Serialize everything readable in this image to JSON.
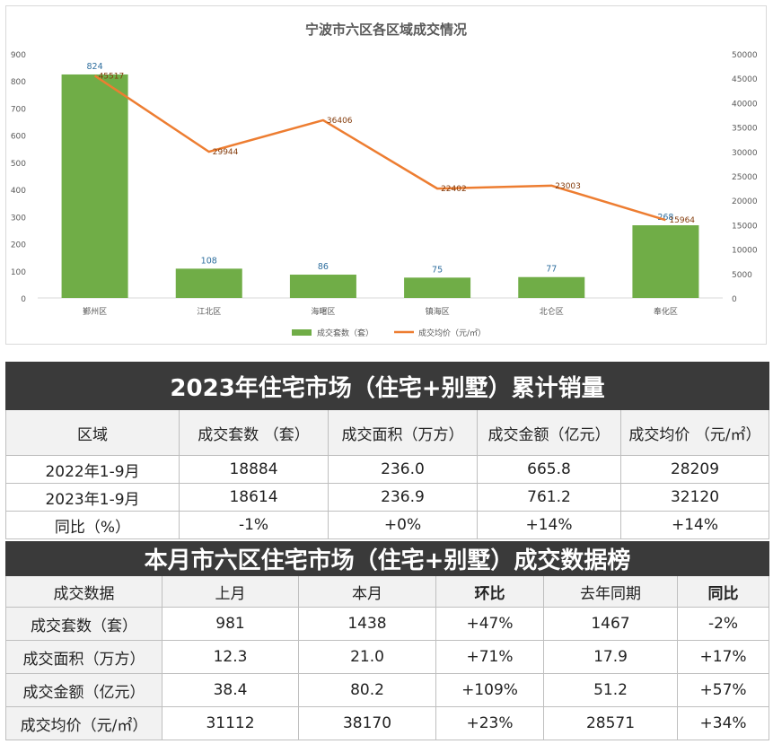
{
  "chart_data": {
    "type": "bar+line",
    "title": "宁波市六区各区域成交情况",
    "categories": [
      "鄞州区",
      "江北区",
      "海曙区",
      "镇海区",
      "北仑区",
      "奉化区"
    ],
    "series": [
      {
        "name": "成交套数（套）",
        "kind": "bar",
        "axis": "left",
        "color": "#70ad47",
        "values": [
          824,
          108,
          86,
          75,
          77,
          268
        ]
      },
      {
        "name": "成交均价（元/㎡）",
        "kind": "line",
        "axis": "right",
        "color": "#ed7d31",
        "values": [
          45517,
          29944,
          36406,
          22402,
          23003,
          15964
        ]
      }
    ],
    "y_left": {
      "min": 0,
      "max": 900,
      "ticks": [
        0,
        100,
        200,
        300,
        400,
        500,
        600,
        700,
        800,
        900
      ]
    },
    "y_right": {
      "min": 0,
      "max": 50000,
      "ticks": [
        0,
        5000,
        10000,
        15000,
        20000,
        25000,
        30000,
        35000,
        40000,
        45000,
        50000
      ]
    },
    "legend_position": "bottom",
    "grid": false
  },
  "table1": {
    "title": "2023年住宅市场（住宅+别墅）累计销量",
    "headers": [
      "区域",
      "成交套数 （套）",
      "成交面积（万方）",
      "成交金额（亿元）",
      "成交均价 （元/㎡）"
    ],
    "rows": [
      {
        "cells": [
          "2022年1-9月",
          "18884",
          "236.0",
          "665.8",
          "28209"
        ]
      },
      {
        "cells": [
          "2023年1-9月",
          "18614",
          "236.9",
          "761.2",
          "32120"
        ]
      },
      {
        "cells": [
          "同比（%）",
          "-1%",
          "+0%",
          "+14%",
          "+14%"
        ]
      }
    ]
  },
  "table2": {
    "title": "本月市六区住宅市场（住宅+别墅）成交数据榜",
    "headers": [
      "成交数据",
      "上月",
      "本月",
      "环比",
      "去年同期",
      "同比"
    ],
    "rows": [
      {
        "cells": [
          "成交套数（套）",
          "981",
          "1438",
          "+47%",
          "1467",
          "-2%"
        ]
      },
      {
        "cells": [
          "成交面积（万方）",
          "12.3",
          "21.0",
          "+71%",
          "17.9",
          "+17%"
        ]
      },
      {
        "cells": [
          "成交金额（亿元）",
          "38.4",
          "80.2",
          "+109%",
          "51.2",
          "+57%"
        ]
      },
      {
        "cells": [
          "成交均价（元/㎡）",
          "31112",
          "38170",
          "+23%",
          "28571",
          "+34%"
        ]
      }
    ]
  }
}
